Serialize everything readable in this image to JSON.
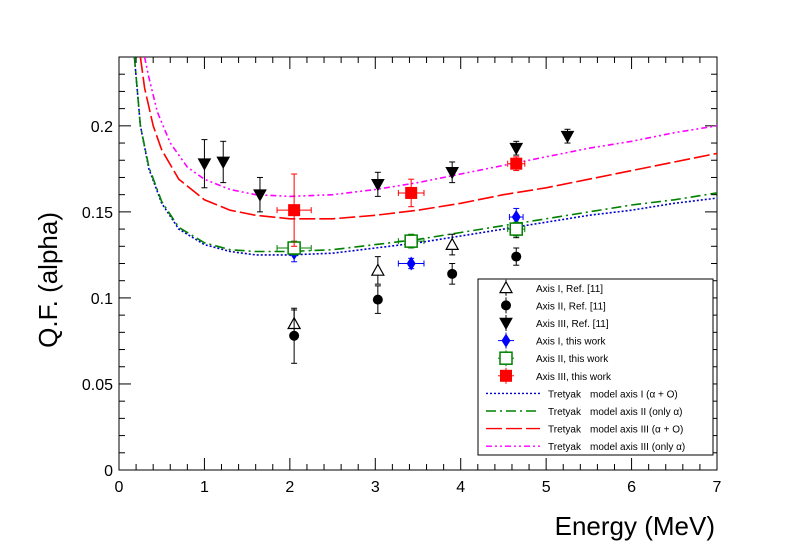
{
  "chart_data": {
    "type": "scatter",
    "title": "",
    "xlabel": "Energy (MeV)",
    "ylabel": "Q.F. (alpha)",
    "xlim": [
      0,
      7
    ],
    "ylim": [
      0,
      0.24
    ],
    "xticks": [
      0,
      1,
      2,
      3,
      4,
      5,
      6,
      7
    ],
    "yticks": [
      0,
      0.05,
      0.1,
      0.15,
      0.2
    ],
    "xtick_labels": [
      "0",
      "1",
      "2",
      "3",
      "4",
      "5",
      "6",
      "7"
    ],
    "ytick_labels": [
      "0",
      "0.05",
      "0.1",
      "0.15",
      "0.2"
    ],
    "legend_position": "bottom-right",
    "series": [
      {
        "name": "Axis I, Ref. [11]",
        "label_main": "Axis I, Ref. [11]",
        "label_prefix": "",
        "kind": "points",
        "marker": "triangle-up-open",
        "color": "#000000",
        "points": [
          {
            "x": 2.05,
            "y": 0.085,
            "yerr": 0.008
          },
          {
            "x": 3.03,
            "y": 0.116,
            "yerr": 0.008
          },
          {
            "x": 3.9,
            "y": 0.131,
            "yerr": 0.006
          },
          {
            "x": 4.65,
            "y": 0.141,
            "yerr": 0.006
          }
        ]
      },
      {
        "name": "Axis II, Ref. [11]",
        "label_main": "Axis II, Ref. [11]",
        "label_prefix": "",
        "kind": "points",
        "marker": "circle-filled",
        "color": "#000000",
        "points": [
          {
            "x": 2.05,
            "y": 0.078,
            "yerr": 0.016
          },
          {
            "x": 3.03,
            "y": 0.099,
            "yerr": 0.008
          },
          {
            "x": 3.9,
            "y": 0.114,
            "yerr": 0.006
          },
          {
            "x": 4.65,
            "y": 0.124,
            "yerr": 0.005
          }
        ]
      },
      {
        "name": "Axis III, Ref. [11]",
        "label_main": "Axis III, Ref. [11]",
        "label_prefix": "",
        "kind": "points",
        "marker": "triangle-down-filled",
        "color": "#000000",
        "points": [
          {
            "x": 1.0,
            "y": 0.178,
            "yerr": 0.014
          },
          {
            "x": 1.22,
            "y": 0.179,
            "yerr": 0.012
          },
          {
            "x": 1.65,
            "y": 0.16,
            "yerr": 0.01
          },
          {
            "x": 3.03,
            "y": 0.166,
            "yerr": 0.007
          },
          {
            "x": 3.9,
            "y": 0.173,
            "yerr": 0.006
          },
          {
            "x": 4.65,
            "y": 0.187,
            "yerr": 0.004
          },
          {
            "x": 5.25,
            "y": 0.194,
            "yerr": 0.004
          }
        ]
      },
      {
        "name": "Axis I, this work",
        "label_main": "Axis I, this work",
        "label_prefix": "",
        "kind": "points",
        "marker": "diamond-filled",
        "color": "#0000ff",
        "points": [
          {
            "x": 2.05,
            "y": 0.126,
            "yerr": 0.005,
            "xerr": 0.04
          },
          {
            "x": 3.42,
            "y": 0.12,
            "yerr": 0.003,
            "xerr": 0.15
          },
          {
            "x": 4.65,
            "y": 0.147,
            "yerr": 0.005,
            "xerr": 0.08
          }
        ]
      },
      {
        "name": "Axis II, this work",
        "label_main": "Axis II, this work",
        "label_prefix": "",
        "kind": "points",
        "marker": "square-open",
        "color": "#008000",
        "points": [
          {
            "x": 2.05,
            "y": 0.129,
            "yerr": 0.004,
            "xerr": 0.2
          },
          {
            "x": 3.42,
            "y": 0.133,
            "yerr": 0.004,
            "xerr": 0.15
          },
          {
            "x": 4.65,
            "y": 0.14,
            "yerr": 0.004,
            "xerr": 0.1
          }
        ]
      },
      {
        "name": "Axis III, this work",
        "label_main": "Axis III, this work",
        "label_prefix": "",
        "kind": "points",
        "marker": "square-filled",
        "color": "#ff0000",
        "points": [
          {
            "x": 2.05,
            "y": 0.151,
            "yerr": 0.021,
            "xerr": 0.2
          },
          {
            "x": 3.42,
            "y": 0.161,
            "yerr": 0.008,
            "xerr": 0.15
          },
          {
            "x": 4.65,
            "y": 0.178,
            "yerr": 0.004,
            "xerr": 0.1
          }
        ]
      },
      {
        "name": "Tretyak model axis I (α + O)",
        "label_prefix": "Tretyak",
        "label_main": "model axis I (α + O)",
        "kind": "line",
        "dash": "2,2",
        "color": "#0000cc",
        "x": [
          0.18,
          0.25,
          0.35,
          0.5,
          0.7,
          1.0,
          1.3,
          1.6,
          2.0,
          2.5,
          3.0,
          3.5,
          4.0,
          4.5,
          5.0,
          5.5,
          6.0,
          6.5,
          7.0
        ],
        "y": [
          0.24,
          0.2,
          0.175,
          0.155,
          0.14,
          0.131,
          0.127,
          0.125,
          0.125,
          0.126,
          0.129,
          0.132,
          0.136,
          0.14,
          0.144,
          0.148,
          0.151,
          0.155,
          0.158
        ]
      },
      {
        "name": "Tretyak model axis II (only α)",
        "label_prefix": "Tretyak",
        "label_main": "model axis II (only α)",
        "kind": "line",
        "dash": "10,4,2,4",
        "color": "#008000",
        "x": [
          0.18,
          0.25,
          0.35,
          0.5,
          0.7,
          1.0,
          1.3,
          1.6,
          2.0,
          2.5,
          3.0,
          3.5,
          4.0,
          4.5,
          5.0,
          5.5,
          6.0,
          6.5,
          7.0
        ],
        "y": [
          0.24,
          0.2,
          0.176,
          0.156,
          0.141,
          0.132,
          0.128,
          0.127,
          0.127,
          0.128,
          0.131,
          0.134,
          0.138,
          0.142,
          0.146,
          0.15,
          0.154,
          0.157,
          0.161
        ]
      },
      {
        "name": "Tretyak model axis III (α + O)",
        "label_prefix": "Tretyak",
        "label_main": "model axis III (α + O)",
        "kind": "line",
        "dash": "16,4",
        "color": "#ff0000",
        "x": [
          0.25,
          0.3,
          0.4,
          0.5,
          0.7,
          1.0,
          1.3,
          1.6,
          2.0,
          2.5,
          3.0,
          3.5,
          4.0,
          4.5,
          5.0,
          5.5,
          6.0,
          6.5,
          7.0
        ],
        "y": [
          0.24,
          0.222,
          0.2,
          0.186,
          0.169,
          0.157,
          0.151,
          0.148,
          0.146,
          0.146,
          0.148,
          0.151,
          0.155,
          0.16,
          0.164,
          0.169,
          0.174,
          0.179,
          0.184
        ]
      },
      {
        "name": "Tretyak model axis III (only α)",
        "label_prefix": "Tretyak",
        "label_main": "model axis III (only α)",
        "kind": "line",
        "dash": "6,3,2,3,2,3",
        "color": "#ff00ff",
        "x": [
          0.3,
          0.35,
          0.45,
          0.6,
          0.8,
          1.0,
          1.3,
          1.6,
          2.0,
          2.5,
          3.0,
          3.5,
          4.0,
          4.5,
          5.0,
          5.5,
          6.0,
          6.5,
          7.0
        ],
        "y": [
          0.24,
          0.228,
          0.208,
          0.19,
          0.176,
          0.169,
          0.163,
          0.16,
          0.159,
          0.16,
          0.163,
          0.167,
          0.172,
          0.177,
          0.182,
          0.187,
          0.191,
          0.196,
          0.2
        ]
      }
    ]
  }
}
